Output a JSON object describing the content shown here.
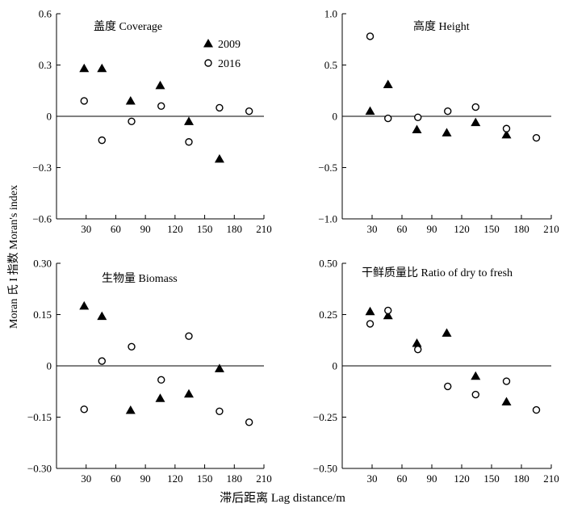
{
  "y_axis_label": "Moran 氏 I 指数 Moran's index",
  "x_axis_label": "滞后距离 Lag distance/m",
  "legend": {
    "s2009": "2009",
    "s2016": "2016"
  },
  "chart_data": [
    {
      "type": "scatter",
      "title": "盖度 Coverage",
      "xlabel": "滞后距离 Lag distance/m",
      "ylabel": "Moran 氏 I 指数 Moran's index",
      "xlim": [
        0,
        210
      ],
      "ylim": [
        -0.6,
        0.6
      ],
      "xticks": [
        30,
        60,
        90,
        120,
        150,
        180,
        210
      ],
      "yticks": [
        -0.6,
        -0.3,
        0,
        0.3,
        0.6
      ],
      "ytick_labels": [
        "−0.6",
        "−0.3",
        "0",
        "0.3",
        "0.6"
      ],
      "series": [
        {
          "name": "2009",
          "marker": "triangle",
          "x": [
            28,
            46,
            75,
            105,
            134,
            165
          ],
          "y": [
            0.28,
            0.28,
            0.09,
            0.18,
            -0.03,
            -0.25
          ]
        },
        {
          "name": "2016",
          "marker": "circle",
          "x": [
            28,
            46,
            76,
            106,
            134,
            165,
            195
          ],
          "y": [
            0.09,
            -0.14,
            -0.03,
            0.06,
            -0.15,
            0.05,
            0.03
          ]
        }
      ]
    },
    {
      "type": "scatter",
      "title": "高度 Height",
      "xlabel": "滞后距离 Lag distance/m",
      "ylabel": "Moran 氏 I 指数 Moran's index",
      "xlim": [
        0,
        210
      ],
      "ylim": [
        -1.0,
        1.0
      ],
      "xticks": [
        30,
        60,
        90,
        120,
        150,
        180,
        210
      ],
      "yticks": [
        -1.0,
        -0.5,
        0,
        0.5,
        1.0
      ],
      "ytick_labels": [
        "−1.0",
        "−0.5",
        "0",
        "0.5",
        "1.0"
      ],
      "series": [
        {
          "name": "2009",
          "marker": "triangle",
          "x": [
            28,
            46,
            75,
            105,
            134,
            165
          ],
          "y": [
            0.05,
            0.31,
            -0.13,
            -0.16,
            -0.06,
            -0.18
          ]
        },
        {
          "name": "2016",
          "marker": "circle",
          "x": [
            28,
            46,
            76,
            106,
            134,
            165,
            195
          ],
          "y": [
            0.78,
            -0.02,
            -0.01,
            0.05,
            0.09,
            -0.12,
            -0.21
          ]
        }
      ]
    },
    {
      "type": "scatter",
      "title": "生物量 Biomass",
      "xlabel": "滞后距离 Lag distance/m",
      "ylabel": "Moran 氏 I 指数 Moran's index",
      "xlim": [
        0,
        210
      ],
      "ylim": [
        -0.3,
        0.3
      ],
      "xticks": [
        30,
        60,
        90,
        120,
        150,
        180,
        210
      ],
      "yticks": [
        -0.3,
        -0.15,
        0,
        0.15,
        0.3
      ],
      "ytick_labels": [
        "−0.30",
        "−0.15",
        "0",
        "0.15",
        "0.30"
      ],
      "series": [
        {
          "name": "2009",
          "marker": "triangle",
          "x": [
            28,
            46,
            75,
            105,
            134,
            165
          ],
          "y": [
            0.175,
            0.145,
            -0.13,
            -0.095,
            -0.082,
            -0.008
          ]
        },
        {
          "name": "2016",
          "marker": "circle",
          "x": [
            28,
            46,
            76,
            106,
            134,
            165,
            195
          ],
          "y": [
            -0.127,
            0.014,
            0.056,
            -0.041,
            0.087,
            -0.133,
            -0.165
          ]
        }
      ]
    },
    {
      "type": "scatter",
      "title": "干鲜质量比 Ratio of dry to fresh",
      "xlabel": "滞后距离 Lag distance/m",
      "ylabel": "Moran 氏 I 指数 Moran's index",
      "xlim": [
        0,
        210
      ],
      "ylim": [
        -0.5,
        0.5
      ],
      "xticks": [
        30,
        60,
        90,
        120,
        150,
        180,
        210
      ],
      "yticks": [
        -0.5,
        -0.25,
        0,
        0.25,
        0.5
      ],
      "ytick_labels": [
        "−0.50",
        "−0.25",
        "0",
        "0.25",
        "0.50"
      ],
      "series": [
        {
          "name": "2009",
          "marker": "triangle",
          "x": [
            28,
            46,
            75,
            105,
            134,
            165
          ],
          "y": [
            0.265,
            0.245,
            0.11,
            0.16,
            -0.05,
            -0.175
          ]
        },
        {
          "name": "2016",
          "marker": "circle",
          "x": [
            28,
            46,
            76,
            106,
            134,
            165,
            195
          ],
          "y": [
            0.205,
            0.27,
            0.08,
            -0.1,
            -0.14,
            -0.075,
            -0.215
          ]
        }
      ]
    }
  ]
}
